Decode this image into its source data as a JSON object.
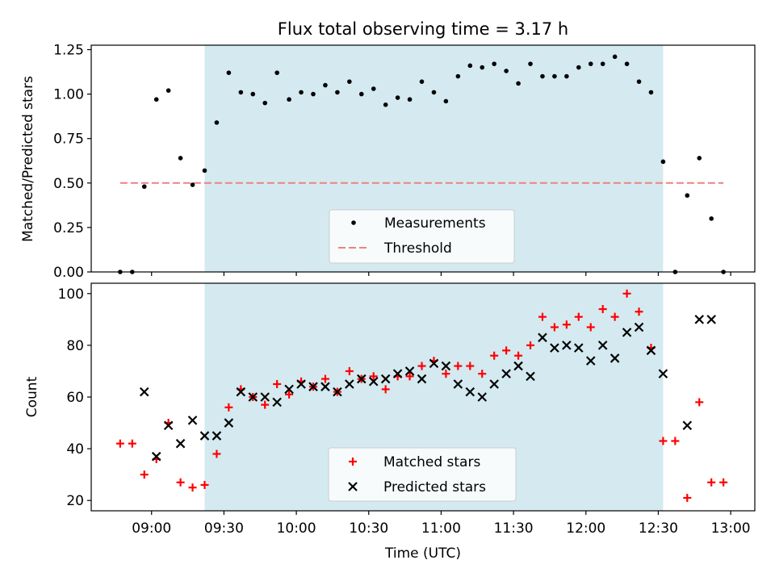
{
  "chart_data": [
    {
      "type": "scatter",
      "title": "Flux total observing time = 3.17 h",
      "xlabel": "",
      "ylabel": "Matched/Predicted stars",
      "ylim": [
        0,
        1.275
      ],
      "xlim": [
        "08:35",
        "13:10"
      ],
      "yticks": [
        0,
        0.25,
        0.5,
        0.75,
        1.0,
        1.25
      ],
      "ytick_labels": [
        "0.00",
        "0.25",
        "0.50",
        "0.75",
        "1.00",
        "1.25"
      ],
      "shaded_span": [
        "09:22",
        "12:32"
      ],
      "shade_color": "#d4eaf0",
      "legend": {
        "position": "lower center",
        "entries": [
          "Measurements",
          "Threshold"
        ]
      },
      "series": [
        {
          "name": "Measurements",
          "marker": "dot",
          "color": "#000000",
          "x": [
            "08:47",
            "08:52",
            "08:57",
            "09:02",
            "09:07",
            "09:12",
            "09:17",
            "09:22",
            "09:27",
            "09:32",
            "09:37",
            "09:42",
            "09:47",
            "09:52",
            "09:57",
            "10:02",
            "10:07",
            "10:12",
            "10:17",
            "10:22",
            "10:27",
            "10:32",
            "10:37",
            "10:42",
            "10:47",
            "10:52",
            "10:57",
            "11:02",
            "11:07",
            "11:12",
            "11:17",
            "11:22",
            "11:27",
            "11:32",
            "11:37",
            "11:42",
            "11:47",
            "11:52",
            "11:57",
            "12:02",
            "12:07",
            "12:12",
            "12:17",
            "12:22",
            "12:27",
            "12:32",
            "12:37",
            "12:42",
            "12:47",
            "12:52",
            "12:57"
          ],
          "values": [
            0.0,
            0.0,
            0.48,
            0.97,
            1.02,
            0.64,
            0.49,
            0.57,
            0.84,
            1.12,
            1.01,
            1.0,
            0.95,
            1.12,
            0.97,
            1.01,
            1.0,
            1.05,
            1.01,
            1.07,
            1.0,
            1.03,
            0.94,
            0.98,
            0.97,
            1.07,
            1.01,
            0.96,
            1.1,
            1.16,
            1.15,
            1.17,
            1.13,
            1.06,
            1.17,
            1.1,
            1.1,
            1.1,
            1.15,
            1.17,
            1.17,
            1.21,
            1.17,
            1.07,
            1.01,
            0.62,
            0.0,
            0.43,
            0.64,
            0.3,
            0.0
          ]
        },
        {
          "name": "Threshold",
          "line": "dashed",
          "color": "#f08080",
          "x": [
            "08:47",
            "12:57"
          ],
          "values": [
            0.5,
            0.5
          ]
        }
      ]
    },
    {
      "type": "scatter",
      "title": "",
      "xlabel": "Time (UTC)",
      "ylabel": "Count",
      "ylim": [
        16,
        104
      ],
      "xlim": [
        "08:35",
        "13:10"
      ],
      "yticks": [
        20,
        40,
        60,
        80,
        100
      ],
      "ytick_labels": [
        "20",
        "40",
        "60",
        "80",
        "100"
      ],
      "xticks": [
        "09:00",
        "09:30",
        "10:00",
        "10:30",
        "11:00",
        "11:30",
        "12:00",
        "12:30",
        "13:00"
      ],
      "shaded_span": [
        "09:22",
        "12:32"
      ],
      "shade_color": "#d4eaf0",
      "legend": {
        "position": "lower center",
        "entries": [
          "Matched stars",
          "Predicted stars"
        ]
      },
      "series": [
        {
          "name": "Matched stars",
          "marker": "plus",
          "color": "#ff0000",
          "x": [
            "08:47",
            "08:52",
            "08:57",
            "09:02",
            "09:07",
            "09:12",
            "09:17",
            "09:22",
            "09:27",
            "09:32",
            "09:37",
            "09:42",
            "09:47",
            "09:52",
            "09:57",
            "10:02",
            "10:07",
            "10:12",
            "10:17",
            "10:22",
            "10:27",
            "10:32",
            "10:37",
            "10:42",
            "10:47",
            "10:52",
            "10:57",
            "11:02",
            "11:07",
            "11:12",
            "11:17",
            "11:22",
            "11:27",
            "11:32",
            "11:37",
            "11:42",
            "11:47",
            "11:52",
            "11:57",
            "12:02",
            "12:07",
            "12:12",
            "12:17",
            "12:22",
            "12:27",
            "12:32",
            "12:37",
            "12:42",
            "12:47",
            "12:52",
            "12:57"
          ],
          "values": [
            42,
            42,
            30,
            36,
            50,
            27,
            25,
            26,
            38,
            56,
            63,
            60,
            57,
            65,
            61,
            66,
            64,
            67,
            62,
            70,
            67,
            68,
            63,
            68,
            68,
            72,
            74,
            69,
            72,
            72,
            69,
            76,
            78,
            76,
            80,
            91,
            87,
            88,
            91,
            87,
            94,
            91,
            100,
            93,
            79,
            43,
            43,
            21,
            58,
            27,
            27
          ]
        },
        {
          "name": "Predicted stars",
          "marker": "x",
          "color": "#000000",
          "x": [
            "08:57",
            "09:02",
            "09:07",
            "09:12",
            "09:17",
            "09:22",
            "09:27",
            "09:32",
            "09:37",
            "09:42",
            "09:47",
            "09:52",
            "09:57",
            "10:02",
            "10:07",
            "10:12",
            "10:17",
            "10:22",
            "10:27",
            "10:32",
            "10:37",
            "10:42",
            "10:47",
            "10:52",
            "10:57",
            "11:02",
            "11:07",
            "11:12",
            "11:17",
            "11:22",
            "11:27",
            "11:32",
            "11:37",
            "11:42",
            "11:47",
            "11:52",
            "11:57",
            "12:02",
            "12:07",
            "12:12",
            "12:17",
            "12:22",
            "12:27",
            "12:32",
            "12:42",
            "12:47",
            "12:52"
          ],
          "values": [
            62,
            37,
            49,
            42,
            51,
            45,
            45,
            50,
            62,
            60,
            60,
            58,
            63,
            65,
            64,
            64,
            62,
            65,
            67,
            66,
            67,
            69,
            70,
            67,
            73,
            72,
            65,
            62,
            60,
            65,
            69,
            72,
            68,
            83,
            79,
            80,
            79,
            74,
            80,
            75,
            85,
            87,
            78,
            69,
            49,
            90,
            90
          ]
        }
      ]
    }
  ]
}
